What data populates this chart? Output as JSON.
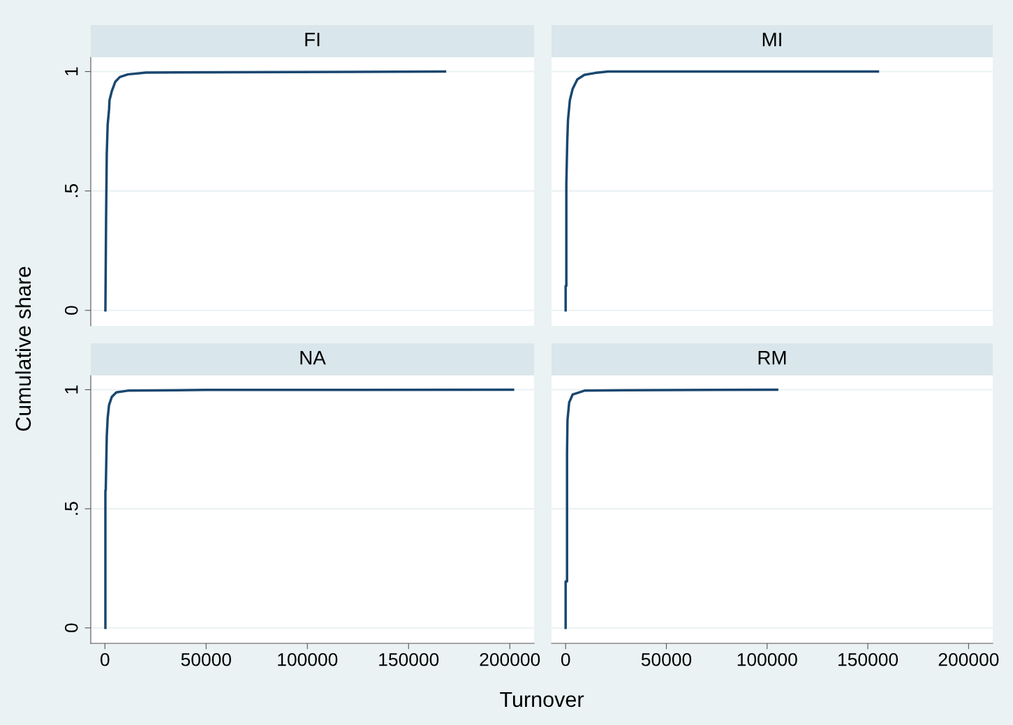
{
  "chart_data": [
    {
      "type": "line",
      "title": "FI",
      "ylabel": "Cumulative share",
      "x": [
        230,
        570,
        910,
        1360,
        2040,
        2270,
        3400,
        5100,
        7370,
        11300,
        20400,
        168000
      ],
      "series": [
        {
          "color": "#1a476f",
          "values": [
            0,
            0.384,
            0.656,
            0.778,
            0.841,
            0.88,
            0.918,
            0.957,
            0.977,
            0.988,
            0.996,
            1
          ]
        }
      ],
      "xlim": [
        -7000,
        212000
      ],
      "ylim": [
        -0.065,
        1.06
      ],
      "yticks": [
        0,
        {
          "value": 0.5,
          "label": ".5"
        },
        1
      ],
      "grid": "y",
      "tick_labels": "y"
    },
    {
      "type": "line",
      "title": "MI",
      "x": [
        0,
        0,
        350,
        350,
        800,
        1170,
        2100,
        3500,
        5830,
        9330,
        14600,
        21000,
        155000
      ],
      "series": [
        {
          "color": "#1a476f",
          "values": [
            0,
            0.102,
            0.102,
            0.53,
            0.705,
            0.797,
            0.88,
            0.928,
            0.967,
            0.986,
            0.994,
            1,
            1
          ]
        }
      ],
      "xlim": [
        -7000,
        212000
      ],
      "ylim": [
        -0.065,
        1.06
      ],
      "yticks": [
        0,
        0.5,
        1
      ],
      "grid": "y",
      "tick_labels": false
    },
    {
      "type": "line",
      "title": "NA",
      "xlabel": "Turnover",
      "x": [
        230,
        230,
        400,
        910,
        1360,
        2040,
        3400,
        5670,
        11300,
        49900,
        201600
      ],
      "series": [
        {
          "color": "#1a476f",
          "values": [
            0,
            0.577,
            0.577,
            0.804,
            0.882,
            0.936,
            0.97,
            0.989,
            0.996,
            0.999,
            1
          ]
        }
      ],
      "xlim": [
        -7000,
        212000
      ],
      "xticks": [
        0,
        50000,
        100000,
        150000,
        200000
      ],
      "ylim": [
        -0.065,
        1.06
      ],
      "yticks": [
        0,
        {
          "value": 0.5,
          "label": ".5"
        },
        1
      ],
      "grid": "y"
    },
    {
      "type": "line",
      "title": "RM",
      "x": [
        0,
        0,
        700,
        700,
        930,
        1750,
        3500,
        9330,
        29200,
        105000
      ],
      "series": [
        {
          "color": "#1a476f",
          "values": [
            0,
            0.195,
            0.195,
            0.733,
            0.873,
            0.946,
            0.98,
            0.996,
            0.998,
            1
          ]
        }
      ],
      "xlim": [
        -7000,
        212000
      ],
      "xticks": [
        0,
        50000,
        100000,
        150000,
        200000
      ],
      "ylim": [
        -0.065,
        1.06
      ],
      "yticks": [
        0,
        0.5,
        1
      ],
      "grid": "y",
      "tick_labels": "x"
    }
  ]
}
